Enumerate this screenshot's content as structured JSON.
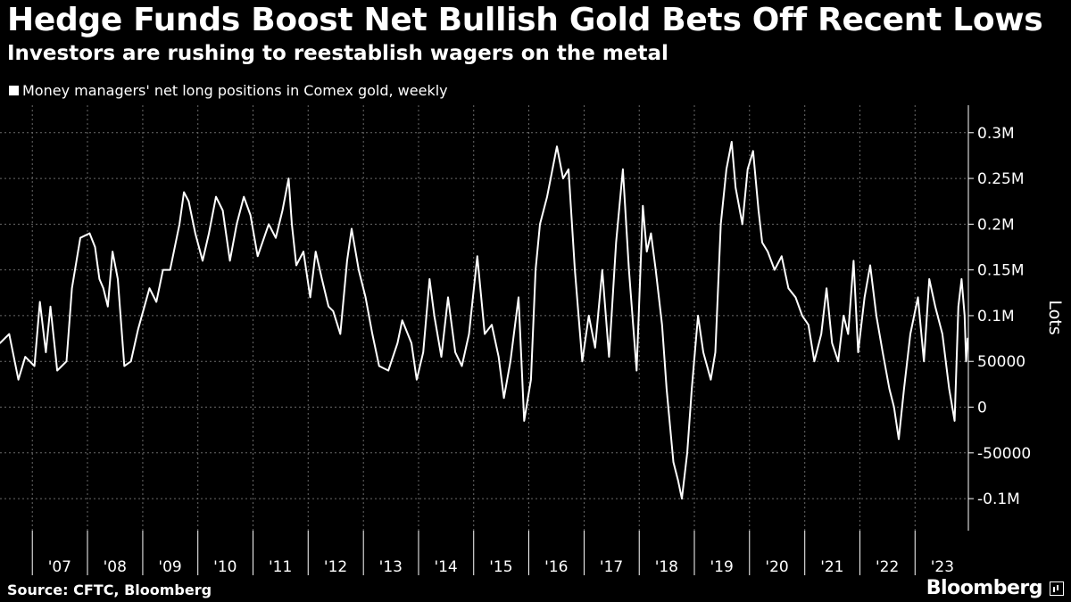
{
  "header": {
    "title": "Hedge Funds Boost Net Bullish Gold Bets Off Recent Lows",
    "subtitle": "Investors are rushing to reestablish wagers on the metal"
  },
  "footer": {
    "source": "Source: CFTC, Bloomberg",
    "brand": "Bloomberg"
  },
  "colors": {
    "background": "#000000",
    "line": "#ffffff",
    "grid": "#666666"
  },
  "chart_data": {
    "type": "line",
    "legend_position": "top-left",
    "grid": true,
    "ylabel": "Lots",
    "ylim": [
      -135000,
      330000
    ],
    "yticks": [
      {
        "value": 300000,
        "label": "0.3M"
      },
      {
        "value": 250000,
        "label": "0.25M"
      },
      {
        "value": 200000,
        "label": "0.2M"
      },
      {
        "value": 150000,
        "label": "0.15M"
      },
      {
        "value": 100000,
        "label": "0.1M"
      },
      {
        "value": 50000,
        "label": "50000"
      },
      {
        "value": 0,
        "label": "0"
      },
      {
        "value": -50000,
        "label": "-50000"
      },
      {
        "value": -100000,
        "label": "-0.1M"
      }
    ],
    "xlim": [
      "2006-06-01",
      "2023-12-20"
    ],
    "xticks": [
      "'07",
      "'08",
      "'09",
      "'10",
      "'11",
      "'12",
      "'13",
      "'14",
      "'15",
      "'16",
      "'17",
      "'18",
      "'19",
      "'20",
      "'21",
      "'22",
      "'23"
    ],
    "series": [
      {
        "name": "Money managers' net long positions in Comex gold, weekly",
        "color": "#ffffff",
        "points": [
          [
            "2006-06-01",
            70000
          ],
          [
            "2006-08-01",
            80000
          ],
          [
            "2006-10-01",
            30000
          ],
          [
            "2006-11-15",
            55000
          ],
          [
            "2007-01-15",
            45000
          ],
          [
            "2007-02-20",
            115000
          ],
          [
            "2007-04-01",
            60000
          ],
          [
            "2007-05-01",
            110000
          ],
          [
            "2007-06-15",
            40000
          ],
          [
            "2007-08-15",
            50000
          ],
          [
            "2007-09-20",
            130000
          ],
          [
            "2007-11-15",
            185000
          ],
          [
            "2008-01-15",
            190000
          ],
          [
            "2008-02-20",
            175000
          ],
          [
            "2008-03-20",
            140000
          ],
          [
            "2008-04-15",
            130000
          ],
          [
            "2008-05-15",
            110000
          ],
          [
            "2008-06-15",
            170000
          ],
          [
            "2008-07-20",
            140000
          ],
          [
            "2008-09-01",
            45000
          ],
          [
            "2008-10-15",
            50000
          ],
          [
            "2008-12-01",
            85000
          ],
          [
            "2009-02-15",
            130000
          ],
          [
            "2009-04-01",
            115000
          ],
          [
            "2009-05-15",
            150000
          ],
          [
            "2009-07-01",
            150000
          ],
          [
            "2009-09-01",
            200000
          ],
          [
            "2009-10-01",
            235000
          ],
          [
            "2009-11-01",
            225000
          ],
          [
            "2009-12-15",
            190000
          ],
          [
            "2010-02-01",
            160000
          ],
          [
            "2010-03-15",
            190000
          ],
          [
            "2010-05-01",
            230000
          ],
          [
            "2010-06-15",
            215000
          ],
          [
            "2010-08-01",
            160000
          ],
          [
            "2010-09-15",
            200000
          ],
          [
            "2010-11-01",
            230000
          ],
          [
            "2010-12-15",
            210000
          ],
          [
            "2011-02-01",
            165000
          ],
          [
            "2011-04-15",
            200000
          ],
          [
            "2011-06-01",
            185000
          ],
          [
            "2011-07-15",
            215000
          ],
          [
            "2011-08-25",
            250000
          ],
          [
            "2011-09-15",
            200000
          ],
          [
            "2011-10-15",
            155000
          ],
          [
            "2011-12-01",
            170000
          ],
          [
            "2012-01-15",
            120000
          ],
          [
            "2012-02-20",
            170000
          ],
          [
            "2012-04-01",
            140000
          ],
          [
            "2012-05-15",
            110000
          ],
          [
            "2012-06-15",
            105000
          ],
          [
            "2012-08-01",
            80000
          ],
          [
            "2012-09-15",
            160000
          ],
          [
            "2012-10-15",
            195000
          ],
          [
            "2012-12-01",
            150000
          ],
          [
            "2013-01-15",
            120000
          ],
          [
            "2013-03-01",
            80000
          ],
          [
            "2013-04-15",
            45000
          ],
          [
            "2013-06-15",
            40000
          ],
          [
            "2013-08-15",
            70000
          ],
          [
            "2013-09-15",
            95000
          ],
          [
            "2013-11-15",
            70000
          ],
          [
            "2013-12-20",
            30000
          ],
          [
            "2014-02-01",
            60000
          ],
          [
            "2014-03-15",
            140000
          ],
          [
            "2014-04-15",
            100000
          ],
          [
            "2014-06-01",
            55000
          ],
          [
            "2014-07-15",
            120000
          ],
          [
            "2014-09-01",
            60000
          ],
          [
            "2014-10-15",
            45000
          ],
          [
            "2014-12-01",
            80000
          ],
          [
            "2015-01-25",
            165000
          ],
          [
            "2015-03-15",
            80000
          ],
          [
            "2015-05-01",
            90000
          ],
          [
            "2015-06-15",
            55000
          ],
          [
            "2015-07-20",
            10000
          ],
          [
            "2015-09-01",
            50000
          ],
          [
            "2015-10-25",
            120000
          ],
          [
            "2015-12-01",
            -15000
          ],
          [
            "2016-01-15",
            30000
          ],
          [
            "2016-02-15",
            150000
          ],
          [
            "2016-03-15",
            200000
          ],
          [
            "2016-05-01",
            230000
          ],
          [
            "2016-07-05",
            285000
          ],
          [
            "2016-08-15",
            250000
          ],
          [
            "2016-09-20",
            260000
          ],
          [
            "2016-11-01",
            150000
          ],
          [
            "2016-12-20",
            50000
          ],
          [
            "2017-02-01",
            100000
          ],
          [
            "2017-03-15",
            65000
          ],
          [
            "2017-05-01",
            150000
          ],
          [
            "2017-06-15",
            55000
          ],
          [
            "2017-08-01",
            180000
          ],
          [
            "2017-09-15",
            260000
          ],
          [
            "2017-10-25",
            150000
          ],
          [
            "2017-12-15",
            40000
          ],
          [
            "2018-01-25",
            220000
          ],
          [
            "2018-02-20",
            170000
          ],
          [
            "2018-03-20",
            190000
          ],
          [
            "2018-04-20",
            150000
          ],
          [
            "2018-06-01",
            90000
          ],
          [
            "2018-07-01",
            20000
          ],
          [
            "2018-08-15",
            -60000
          ],
          [
            "2018-09-15",
            -80000
          ],
          [
            "2018-10-10",
            -100000
          ],
          [
            "2018-11-15",
            -50000
          ],
          [
            "2018-12-15",
            20000
          ],
          [
            "2019-01-25",
            100000
          ],
          [
            "2019-03-01",
            60000
          ],
          [
            "2019-04-20",
            30000
          ],
          [
            "2019-05-20",
            60000
          ],
          [
            "2019-06-25",
            200000
          ],
          [
            "2019-08-01",
            260000
          ],
          [
            "2019-09-05",
            290000
          ],
          [
            "2019-10-01",
            240000
          ],
          [
            "2019-11-15",
            200000
          ],
          [
            "2019-12-20",
            260000
          ],
          [
            "2020-01-25",
            280000
          ],
          [
            "2020-03-01",
            215000
          ],
          [
            "2020-03-25",
            180000
          ],
          [
            "2020-05-01",
            170000
          ],
          [
            "2020-06-15",
            150000
          ],
          [
            "2020-08-01",
            165000
          ],
          [
            "2020-09-15",
            130000
          ],
          [
            "2020-11-01",
            120000
          ],
          [
            "2020-12-15",
            100000
          ],
          [
            "2021-01-25",
            90000
          ],
          [
            "2021-03-05",
            50000
          ],
          [
            "2021-04-20",
            80000
          ],
          [
            "2021-05-25",
            130000
          ],
          [
            "2021-07-01",
            70000
          ],
          [
            "2021-08-10",
            50000
          ],
          [
            "2021-09-15",
            100000
          ],
          [
            "2021-10-15",
            80000
          ],
          [
            "2021-11-20",
            160000
          ],
          [
            "2021-12-20",
            60000
          ],
          [
            "2022-02-01",
            120000
          ],
          [
            "2022-03-10",
            155000
          ],
          [
            "2022-04-20",
            100000
          ],
          [
            "2022-06-01",
            60000
          ],
          [
            "2022-07-15",
            20000
          ],
          [
            "2022-08-15",
            0
          ],
          [
            "2022-09-15",
            -35000
          ],
          [
            "2022-10-20",
            20000
          ],
          [
            "2022-12-01",
            80000
          ],
          [
            "2023-01-20",
            120000
          ],
          [
            "2023-03-01",
            50000
          ],
          [
            "2023-04-05",
            140000
          ],
          [
            "2023-05-15",
            110000
          ],
          [
            "2023-07-01",
            80000
          ],
          [
            "2023-08-15",
            20000
          ],
          [
            "2023-09-20",
            -15000
          ],
          [
            "2023-10-15",
            110000
          ],
          [
            "2023-11-05",
            140000
          ],
          [
            "2023-11-25",
            100000
          ],
          [
            "2023-12-05",
            50000
          ],
          [
            "2023-12-15",
            75000
          ]
        ]
      }
    ]
  }
}
